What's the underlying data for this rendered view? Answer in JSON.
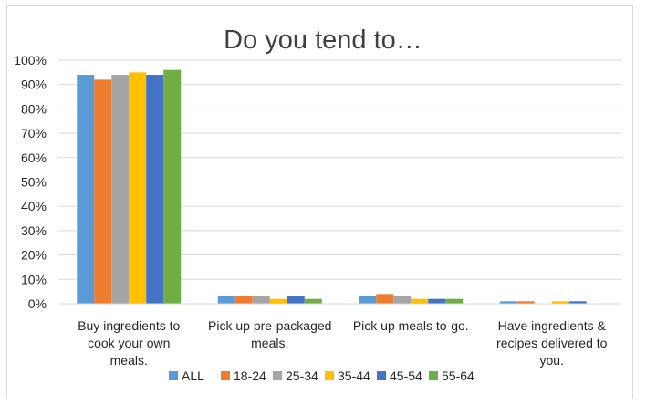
{
  "chart_data": {
    "type": "bar",
    "title": "Do you tend to…",
    "categories": [
      [
        "Buy ingredients to",
        "cook your own",
        "meals."
      ],
      [
        "Pick up pre-packaged",
        "meals."
      ],
      [
        "Pick up meals to-go."
      ],
      [
        "Have ingredients &",
        "recipes delivered to",
        "you."
      ]
    ],
    "series": [
      {
        "name": "ALL",
        "color": "#5b9bd5",
        "values": [
          94,
          3,
          3,
          1
        ]
      },
      {
        "name": "18-24",
        "color": "#ed7d31",
        "values": [
          92,
          3,
          4,
          1
        ]
      },
      {
        "name": "25-34",
        "color": "#a5a5a5",
        "values": [
          94,
          3,
          3,
          0
        ]
      },
      {
        "name": "35-44",
        "color": "#ffc000",
        "values": [
          95,
          2,
          2,
          1
        ]
      },
      {
        "name": "45-54",
        "color": "#4472c4",
        "values": [
          94,
          3,
          2,
          1
        ]
      },
      {
        "name": "55-64",
        "color": "#70ad47",
        "values": [
          96,
          2,
          2,
          0
        ]
      }
    ],
    "y_ticks": [
      "0%",
      "10%",
      "20%",
      "30%",
      "40%",
      "50%",
      "60%",
      "70%",
      "80%",
      "90%",
      "100%"
    ],
    "ylim": [
      0,
      100
    ],
    "grid": true,
    "legend_position": "bottom"
  }
}
